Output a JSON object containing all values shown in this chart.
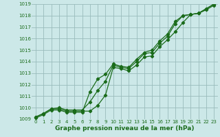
{
  "xlabel": "Graphe pression niveau de la mer (hPa)",
  "x": [
    0,
    1,
    2,
    3,
    4,
    5,
    6,
    7,
    8,
    9,
    10,
    11,
    12,
    13,
    14,
    15,
    16,
    17,
    18,
    19,
    20,
    21,
    22,
    23
  ],
  "line1": [
    1009.2,
    1009.5,
    1009.9,
    1009.9,
    1009.7,
    1009.7,
    1009.7,
    1009.7,
    1010.2,
    1011.1,
    1013.5,
    1013.4,
    1013.2,
    1013.7,
    1014.4,
    1014.5,
    1015.3,
    1015.9,
    1016.6,
    1017.4,
    1018.1,
    1018.2,
    1018.5,
    1018.9
  ],
  "line2": [
    1009.2,
    1009.5,
    1009.9,
    1010.0,
    1009.8,
    1009.8,
    1009.8,
    1010.5,
    1011.5,
    1012.3,
    1013.7,
    1013.5,
    1013.4,
    1014.0,
    1014.7,
    1014.8,
    1015.6,
    1016.2,
    1017.3,
    1018.0,
    1018.1,
    1018.2,
    1018.6,
    1019.0
  ],
  "line3": [
    1009.1,
    1009.4,
    1009.8,
    1009.8,
    1009.6,
    1009.6,
    1009.6,
    1011.4,
    1012.5,
    1012.9,
    1013.8,
    1013.6,
    1013.5,
    1014.2,
    1014.8,
    1015.0,
    1015.8,
    1016.4,
    1017.5,
    1018.0,
    1018.1,
    1018.2,
    1018.6,
    1019.0
  ],
  "line_color": "#1a6b1a",
  "bg_color": "#cce8e8",
  "grid_color": "#99bbbb",
  "ylim": [
    1009,
    1019
  ],
  "yticks": [
    1009,
    1010,
    1011,
    1012,
    1013,
    1014,
    1015,
    1016,
    1017,
    1018,
    1019
  ],
  "xticks": [
    0,
    1,
    2,
    3,
    4,
    5,
    6,
    7,
    8,
    9,
    10,
    11,
    12,
    13,
    14,
    15,
    16,
    17,
    18,
    19,
    20,
    21,
    22,
    23
  ],
  "marker": "D",
  "marker_size": 2.2,
  "line_width": 0.9,
  "xlabel_fontsize": 6.5,
  "tick_fontsize": 5.0
}
